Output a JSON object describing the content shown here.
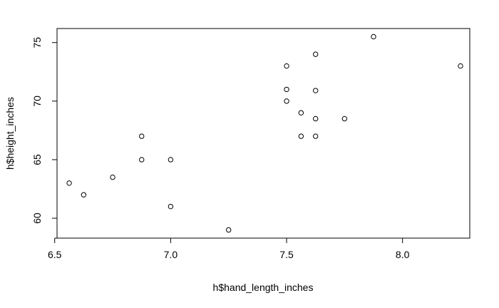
{
  "chart_data": {
    "type": "scatter",
    "title": "",
    "xlabel": "h$hand_length_inches",
    "ylabel": "h$height_inches",
    "xlim": [
      6.51,
      8.29
    ],
    "ylim": [
      58.3,
      76.2
    ],
    "x_ticks": [
      6.5,
      7.0,
      7.5,
      8.0
    ],
    "x_tick_labels": [
      "6.5",
      "7.0",
      "7.5",
      "8.0"
    ],
    "y_ticks": [
      60,
      65,
      70,
      75
    ],
    "y_tick_labels": [
      "60",
      "65",
      "70",
      "75"
    ],
    "grid": false,
    "legend": "none",
    "marker": "open-circle",
    "point_color": "#000000",
    "points": [
      {
        "x": 6.5625,
        "y": 63
      },
      {
        "x": 6.625,
        "y": 62
      },
      {
        "x": 6.75,
        "y": 63.5
      },
      {
        "x": 6.875,
        "y": 67
      },
      {
        "x": 6.875,
        "y": 65
      },
      {
        "x": 7.0,
        "y": 65
      },
      {
        "x": 7.0,
        "y": 61
      },
      {
        "x": 7.25,
        "y": 59
      },
      {
        "x": 7.5,
        "y": 73
      },
      {
        "x": 7.5,
        "y": 71
      },
      {
        "x": 7.5,
        "y": 70
      },
      {
        "x": 7.5625,
        "y": 69
      },
      {
        "x": 7.5625,
        "y": 67
      },
      {
        "x": 7.625,
        "y": 74
      },
      {
        "x": 7.625,
        "y": 70.9
      },
      {
        "x": 7.625,
        "y": 68.5
      },
      {
        "x": 7.625,
        "y": 67
      },
      {
        "x": 7.75,
        "y": 68.5
      },
      {
        "x": 7.875,
        "y": 75.5
      },
      {
        "x": 8.25,
        "y": 73
      }
    ]
  }
}
